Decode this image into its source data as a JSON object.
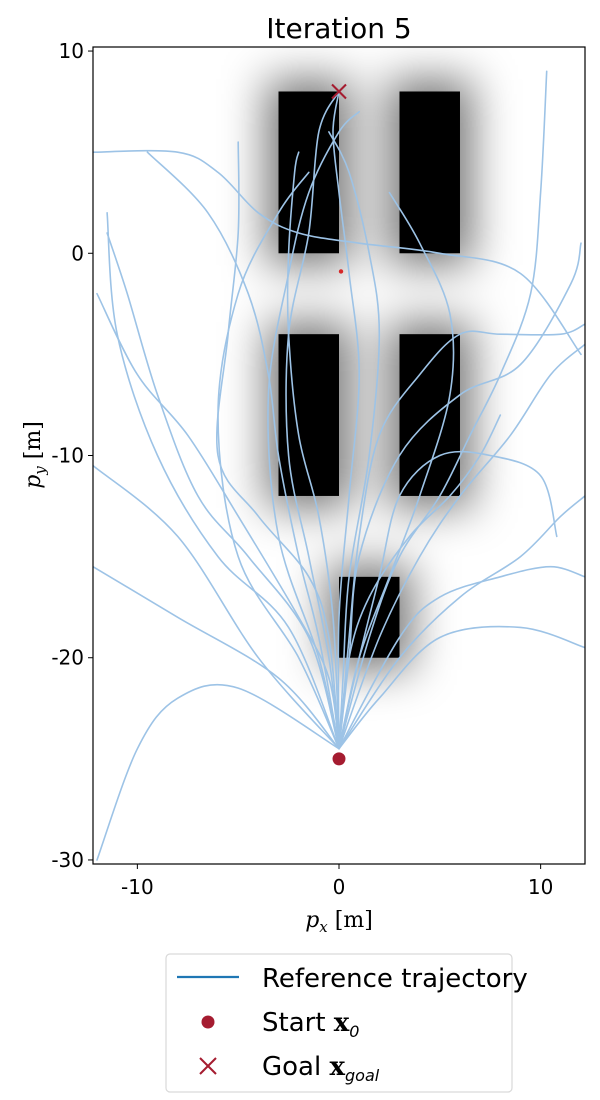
{
  "chart_data": {
    "type": "line",
    "title": "Iteration 5",
    "xlabel": "p_x [m]",
    "ylabel": "p_y [m]",
    "xlim": [
      -12.2,
      12.2
    ],
    "ylim": [
      -30.2,
      10.2
    ],
    "xticks": [
      -10,
      0,
      10
    ],
    "xtick_labels": [
      "-10",
      "0",
      "10"
    ],
    "yticks": [
      10,
      0,
      -10,
      -20,
      -30
    ],
    "ytick_labels": [
      "10",
      "0",
      "-10",
      "-20",
      "-30"
    ],
    "grid": false,
    "legend_position": "below plot",
    "legend": [
      {
        "name": "Reference trajectory",
        "marker": "line"
      },
      {
        "name": "Start x_0",
        "marker": "circle"
      },
      {
        "name": "Goal x_goal",
        "marker": "cross"
      }
    ],
    "obstacles": [
      {
        "x": [
          -3,
          0
        ],
        "y": [
          0,
          8
        ]
      },
      {
        "x": [
          3,
          6
        ],
        "y": [
          0,
          8
        ]
      },
      {
        "x": [
          -3,
          0
        ],
        "y": [
          -12,
          -4
        ]
      },
      {
        "x": [
          3,
          6
        ],
        "y": [
          -12,
          -4
        ]
      },
      {
        "x": [
          0,
          3
        ],
        "y": [
          -20,
          -16
        ]
      }
    ],
    "start": {
      "x": 0,
      "y": -25
    },
    "goal": {
      "x": 0,
      "y": 8
    },
    "current_point": {
      "x": 0.1,
      "y": -0.9
    },
    "series": [
      {
        "points": [
          [
            0,
            -24.5
          ],
          [
            -1,
            -20
          ],
          [
            -3,
            -14
          ],
          [
            -3.5,
            -7
          ],
          [
            -2.5,
            -1
          ],
          [
            -1.5,
            3
          ],
          [
            0,
            6
          ],
          [
            1,
            7
          ]
        ]
      },
      {
        "points": [
          [
            0,
            -24.5
          ],
          [
            -0.5,
            -20
          ],
          [
            -1.5,
            -15
          ],
          [
            -2.5,
            -10
          ],
          [
            -2.5,
            -4
          ],
          [
            -1.5,
            1
          ],
          [
            -1,
            6
          ],
          [
            0,
            8
          ]
        ]
      },
      {
        "points": [
          [
            0,
            -24.5
          ],
          [
            0.2,
            -21
          ],
          [
            0.5,
            -16
          ],
          [
            1.5,
            -10
          ],
          [
            2,
            -4
          ],
          [
            1.5,
            0
          ],
          [
            0.5,
            4
          ],
          [
            -0.5,
            6
          ]
        ]
      },
      {
        "points": [
          [
            0,
            -24.5
          ],
          [
            -2,
            -20
          ],
          [
            -5,
            -15
          ],
          [
            -6,
            -8
          ],
          [
            -5,
            -2
          ],
          [
            -3,
            2
          ],
          [
            -1.5,
            4
          ]
        ]
      },
      {
        "points": [
          [
            0,
            -24.5
          ],
          [
            -5,
            -21.5
          ],
          [
            -8,
            -22
          ],
          [
            -10,
            -24.5
          ],
          [
            -12,
            -30
          ]
        ]
      },
      {
        "points": [
          [
            0,
            -24.5
          ],
          [
            -3,
            -21
          ],
          [
            -8,
            -18
          ],
          [
            -12.2,
            -15.5
          ]
        ]
      },
      {
        "points": [
          [
            0,
            -24.5
          ],
          [
            -4,
            -20
          ],
          [
            -8,
            -14
          ],
          [
            -12.2,
            -10.5
          ]
        ]
      },
      {
        "points": [
          [
            0,
            -24.5
          ],
          [
            -2.5,
            -18.5
          ],
          [
            -6,
            -15
          ],
          [
            -9,
            -10
          ],
          [
            -11,
            -4
          ],
          [
            -11.5,
            2
          ]
        ]
      },
      {
        "points": [
          [
            0,
            -24.5
          ],
          [
            -1.5,
            -19
          ],
          [
            -4.5,
            -15
          ],
          [
            -7,
            -12
          ],
          [
            -9,
            -7
          ],
          [
            -10.5,
            -2
          ],
          [
            -11.5,
            1
          ]
        ]
      },
      {
        "points": [
          [
            0,
            -24.5
          ],
          [
            -1,
            -19
          ],
          [
            -2,
            -15
          ],
          [
            -3,
            -10
          ],
          [
            -3.5,
            -6
          ],
          [
            -4.5,
            -2
          ],
          [
            -6.5,
            2
          ],
          [
            -9.5,
            5
          ]
        ]
      },
      {
        "points": [
          [
            0,
            -24.5
          ],
          [
            -0.5,
            -19
          ],
          [
            -1.5,
            -16
          ],
          [
            -4,
            -13
          ],
          [
            -6,
            -10
          ],
          [
            -5.5,
            -4
          ],
          [
            -5,
            1
          ],
          [
            -5,
            5.5
          ]
        ]
      },
      {
        "points": [
          [
            0,
            -24.5
          ],
          [
            -0.3,
            -18
          ],
          [
            -1,
            -13
          ],
          [
            -2,
            -9
          ],
          [
            -2.5,
            -4
          ],
          [
            -2.5,
            0
          ],
          [
            -2.2,
            4
          ],
          [
            -2,
            5
          ]
        ]
      },
      {
        "points": [
          [
            -12.2,
            5
          ],
          [
            -8,
            5
          ],
          [
            -6,
            4
          ],
          [
            -4,
            2
          ],
          [
            -2,
            1
          ],
          [
            1,
            0.5
          ],
          [
            5,
            0
          ],
          [
            9,
            -1
          ],
          [
            12,
            -5
          ]
        ]
      },
      {
        "points": [
          [
            0,
            -24.5
          ],
          [
            2,
            -19
          ],
          [
            4,
            -15
          ],
          [
            6,
            -12
          ],
          [
            8.5,
            -9
          ],
          [
            10.5,
            -6
          ],
          [
            12.2,
            -4.5
          ]
        ]
      },
      {
        "points": [
          [
            0,
            -24.5
          ],
          [
            3,
            -20
          ],
          [
            6,
            -17
          ],
          [
            9,
            -15
          ],
          [
            11,
            -13
          ],
          [
            12.2,
            -12
          ]
        ]
      },
      {
        "points": [
          [
            0,
            -24.5
          ],
          [
            3,
            -19
          ],
          [
            5,
            -17
          ],
          [
            8,
            -16
          ],
          [
            10.5,
            -15.5
          ],
          [
            12.2,
            -16
          ]
        ]
      },
      {
        "points": [
          [
            0,
            -24.5
          ],
          [
            2,
            -22
          ],
          [
            5,
            -19
          ],
          [
            9,
            -18.5
          ],
          [
            12.2,
            -19.5
          ]
        ]
      },
      {
        "points": [
          [
            0,
            -24.5
          ],
          [
            1.5,
            -19
          ],
          [
            3,
            -15
          ],
          [
            5,
            -12
          ],
          [
            6.5,
            -9
          ],
          [
            8,
            -6
          ],
          [
            9.5,
            -2
          ],
          [
            10,
            3
          ],
          [
            10.3,
            9
          ]
        ]
      },
      {
        "points": [
          [
            0,
            -24.5
          ],
          [
            1,
            -20
          ],
          [
            2.5,
            -16
          ],
          [
            4,
            -12
          ],
          [
            5.5,
            -7
          ],
          [
            5.5,
            -3
          ],
          [
            4,
            0.5
          ],
          [
            2.5,
            3
          ]
        ]
      },
      {
        "points": [
          [
            0,
            -24.5
          ],
          [
            0.5,
            -19
          ],
          [
            1,
            -14
          ],
          [
            2,
            -9
          ],
          [
            4,
            -6
          ],
          [
            6,
            -4
          ],
          [
            8,
            -4
          ],
          [
            11,
            -4
          ],
          [
            12.2,
            -3.5
          ]
        ]
      },
      {
        "points": [
          [
            0,
            -24.5
          ],
          [
            1,
            -20
          ],
          [
            2,
            -16
          ],
          [
            3,
            -12
          ],
          [
            5,
            -10
          ],
          [
            7.5,
            -10
          ],
          [
            10,
            -11
          ],
          [
            10.8,
            -14
          ]
        ]
      },
      {
        "points": [
          [
            0,
            -24.5
          ],
          [
            0.5,
            -20
          ],
          [
            1.5,
            -17
          ],
          [
            3.5,
            -14
          ],
          [
            5.5,
            -12
          ],
          [
            7,
            -10
          ],
          [
            8,
            -8
          ]
        ]
      },
      {
        "points": [
          [
            0,
            -24.5
          ],
          [
            0.5,
            -20
          ],
          [
            1,
            -15
          ],
          [
            3,
            -10
          ],
          [
            6,
            -7
          ],
          [
            9,
            -5.5
          ],
          [
            11.5,
            -1.5
          ],
          [
            12,
            0.5
          ]
        ]
      },
      {
        "points": [
          [
            0,
            -24.5
          ],
          [
            -0.5,
            -21
          ],
          [
            -2,
            -18
          ],
          [
            -5,
            -13
          ],
          [
            -7.5,
            -9
          ],
          [
            -10,
            -6
          ],
          [
            -12,
            -2
          ]
        ]
      },
      {
        "points": [
          [
            0,
            -24.5
          ],
          [
            0,
            -18
          ],
          [
            0.5,
            -12
          ],
          [
            1,
            -6
          ],
          [
            0.5,
            -1
          ],
          [
            0,
            3
          ],
          [
            -0.3,
            6
          ],
          [
            0,
            8
          ]
        ]
      }
    ]
  },
  "legend_labels": {
    "reference": "Reference trajectory",
    "start_prefix": "Start ",
    "start_sym": "x",
    "start_sub": "0",
    "goal_prefix": "Goal ",
    "goal_sym": "x",
    "goal_sub": "goal"
  },
  "colors": {
    "trajectory": "#9dc3e6",
    "legend_line": "#1f77b4",
    "marker": "#a51c30",
    "obstacle": "#000000"
  }
}
